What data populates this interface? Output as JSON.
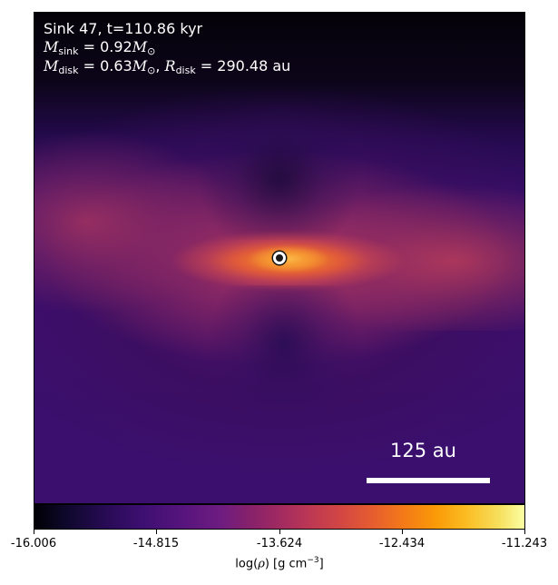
{
  "annotation": {
    "line1": "Sink 47, t=110.86 kyr",
    "m_sink_symbol": "M",
    "m_sink_sub": "sink",
    "m_sink_value": " = 0.92",
    "m_unit_symbol": "M",
    "m_unit_sub": "⊙",
    "m_disk_symbol": "M",
    "m_disk_sub": "disk",
    "m_disk_value": " = 0.63",
    "m_disk_unit_symbol": "M",
    "m_disk_unit_sub": "⊙",
    "separator": ", ",
    "r_disk_symbol": "R",
    "r_disk_sub": "disk",
    "r_disk_value": " = 290.48 au"
  },
  "scale_bar": {
    "label": "125 au"
  },
  "colorbar": {
    "colormap": "inferno",
    "ticks": [
      "-16.006",
      "-14.815",
      "-13.624",
      "-12.434",
      "-11.243"
    ],
    "label_prefix": "log(",
    "label_symbol": "ρ",
    "label_mid": ") [g cm",
    "label_exp": "−3",
    "label_suffix": "]"
  },
  "colors": {
    "sink_fill": "#1a1a1a",
    "sink_ring": "#ffffff",
    "disk_core": "#f69a34",
    "background_cloud": "#3b0f6e"
  }
}
